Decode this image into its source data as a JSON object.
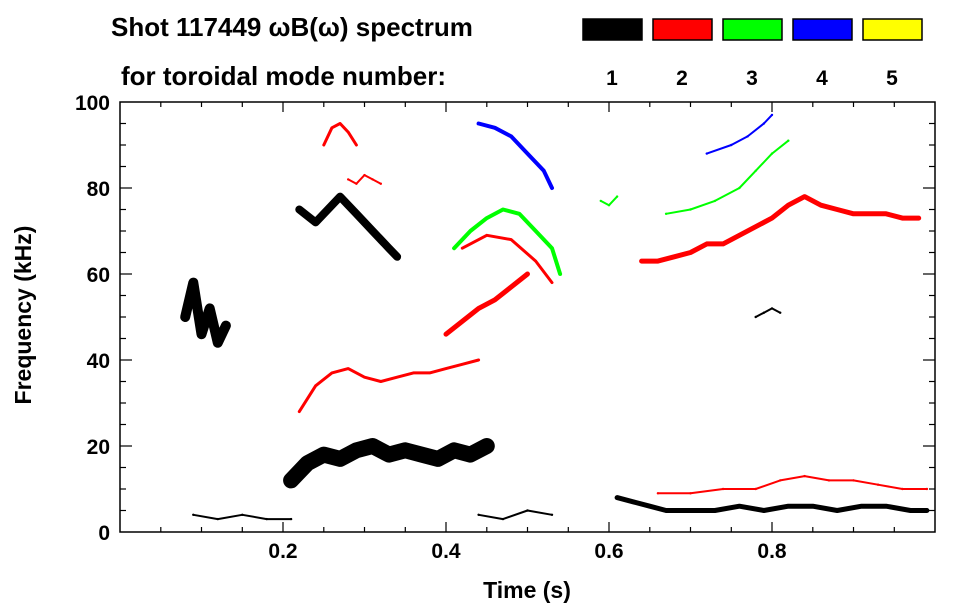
{
  "header": {
    "title_line1": "Shot 117449 ωB(ω) spectrum",
    "title_line2": "for toroidal mode number:"
  },
  "legend": [
    {
      "label": "1",
      "color": "#000000"
    },
    {
      "label": "2",
      "color": "#ff0000"
    },
    {
      "label": "3",
      "color": "#00ff00"
    },
    {
      "label": "4",
      "color": "#0000ff"
    },
    {
      "label": "5",
      "color": "#ffff00"
    }
  ],
  "chart_data": {
    "type": "scatter",
    "title": "Shot 117449 ωB(ω) spectrum for toroidal mode number",
    "xlabel": "Time (s)",
    "ylabel": "Frequency (kHz)",
    "xlim": [
      0.0,
      1.0
    ],
    "ylim": [
      0,
      100
    ],
    "x_ticks": [
      0.2,
      0.4,
      0.6,
      0.8
    ],
    "x_tick_labels": [
      "0.2",
      "0.4",
      "0.6",
      "0.8"
    ],
    "y_ticks": [
      0,
      20,
      40,
      60,
      80,
      100
    ],
    "y_tick_labels": [
      "0",
      "20",
      "40",
      "60",
      "80",
      "100"
    ],
    "series": [
      {
        "name": "n=1",
        "color": "#000000",
        "traces": [
          {
            "x": [
              0.08,
              0.09,
              0.1,
              0.11,
              0.12,
              0.13
            ],
            "y": [
              50,
              58,
              46,
              52,
              44,
              48
            ],
            "w": 10
          },
          {
            "x": [
              0.21,
              0.23,
              0.25,
              0.27,
              0.29,
              0.31,
              0.33,
              0.35,
              0.37,
              0.39,
              0.41,
              0.43,
              0.45
            ],
            "y": [
              12,
              16,
              18,
              17,
              19,
              20,
              18,
              19,
              18,
              17,
              19,
              18,
              20
            ],
            "w": 16
          },
          {
            "x": [
              0.22,
              0.24,
              0.26,
              0.27,
              0.29,
              0.31,
              0.33,
              0.34
            ],
            "y": [
              75,
              72,
              76,
              78,
              74,
              70,
              66,
              64
            ],
            "w": 8
          },
          {
            "x": [
              0.61,
              0.63,
              0.65,
              0.67,
              0.7,
              0.73,
              0.76,
              0.79,
              0.82,
              0.85,
              0.88,
              0.91,
              0.94,
              0.97,
              0.99
            ],
            "y": [
              8,
              7,
              6,
              5,
              5,
              5,
              6,
              5,
              6,
              6,
              5,
              6,
              6,
              5,
              5
            ],
            "w": 5
          },
          {
            "x": [
              0.09,
              0.12,
              0.15,
              0.18,
              0.21
            ],
            "y": [
              4,
              3,
              4,
              3,
              3
            ],
            "w": 2
          },
          {
            "x": [
              0.44,
              0.47,
              0.5,
              0.53
            ],
            "y": [
              4,
              3,
              5,
              4
            ],
            "w": 2
          },
          {
            "x": [
              0.78,
              0.79,
              0.8,
              0.81
            ],
            "y": [
              50,
              51,
              52,
              51
            ],
            "w": 2
          }
        ]
      },
      {
        "name": "n=2",
        "color": "#ff0000",
        "traces": [
          {
            "x": [
              0.22,
              0.24,
              0.26,
              0.28,
              0.3,
              0.32,
              0.34,
              0.36,
              0.38,
              0.4,
              0.42,
              0.44
            ],
            "y": [
              28,
              34,
              37,
              38,
              36,
              35,
              36,
              37,
              37,
              38,
              39,
              40
            ],
            "w": 3
          },
          {
            "x": [
              0.4,
              0.42,
              0.44,
              0.46,
              0.48,
              0.5
            ],
            "y": [
              46,
              49,
              52,
              54,
              57,
              60
            ],
            "w": 5
          },
          {
            "x": [
              0.42,
              0.45,
              0.48,
              0.51,
              0.53
            ],
            "y": [
              66,
              69,
              68,
              63,
              58
            ],
            "w": 3
          },
          {
            "x": [
              0.25,
              0.26,
              0.27,
              0.28,
              0.29
            ],
            "y": [
              90,
              94,
              95,
              93,
              90
            ],
            "w": 3
          },
          {
            "x": [
              0.28,
              0.29,
              0.3,
              0.31,
              0.32
            ],
            "y": [
              82,
              81,
              83,
              82,
              81
            ],
            "w": 2
          },
          {
            "x": [
              0.64,
              0.66,
              0.68,
              0.7,
              0.72,
              0.74,
              0.76,
              0.78,
              0.8,
              0.82,
              0.84,
              0.86,
              0.88,
              0.9,
              0.92,
              0.94,
              0.96,
              0.98
            ],
            "y": [
              63,
              63,
              64,
              65,
              67,
              67,
              69,
              71,
              73,
              76,
              78,
              76,
              75,
              74,
              74,
              74,
              73,
              73
            ],
            "w": 5
          },
          {
            "x": [
              0.66,
              0.7,
              0.74,
              0.78,
              0.81,
              0.84,
              0.87,
              0.9,
              0.93,
              0.96,
              0.99
            ],
            "y": [
              9,
              9,
              10,
              10,
              12,
              13,
              12,
              12,
              11,
              10,
              10
            ],
            "w": 2
          }
        ]
      },
      {
        "name": "n=3",
        "color": "#00ff00",
        "traces": [
          {
            "x": [
              0.41,
              0.43,
              0.45,
              0.47,
              0.49,
              0.51,
              0.53,
              0.54
            ],
            "y": [
              66,
              70,
              73,
              75,
              74,
              70,
              66,
              60
            ],
            "w": 4
          },
          {
            "x": [
              0.67,
              0.7,
              0.73,
              0.76,
              0.78,
              0.8,
              0.82
            ],
            "y": [
              74,
              75,
              77,
              80,
              84,
              88,
              91
            ],
            "w": 2
          },
          {
            "x": [
              0.59,
              0.6,
              0.61
            ],
            "y": [
              77,
              76,
              78
            ],
            "w": 2
          }
        ]
      },
      {
        "name": "n=4",
        "color": "#0000ff",
        "traces": [
          {
            "x": [
              0.44,
              0.46,
              0.48,
              0.5,
              0.52,
              0.53
            ],
            "y": [
              95,
              94,
              92,
              88,
              84,
              80
            ],
            "w": 4
          },
          {
            "x": [
              0.72,
              0.75,
              0.77,
              0.79,
              0.8
            ],
            "y": [
              88,
              90,
              92,
              95,
              97
            ],
            "w": 2
          }
        ]
      },
      {
        "name": "n=5",
        "color": "#ffff00",
        "traces": []
      }
    ]
  }
}
